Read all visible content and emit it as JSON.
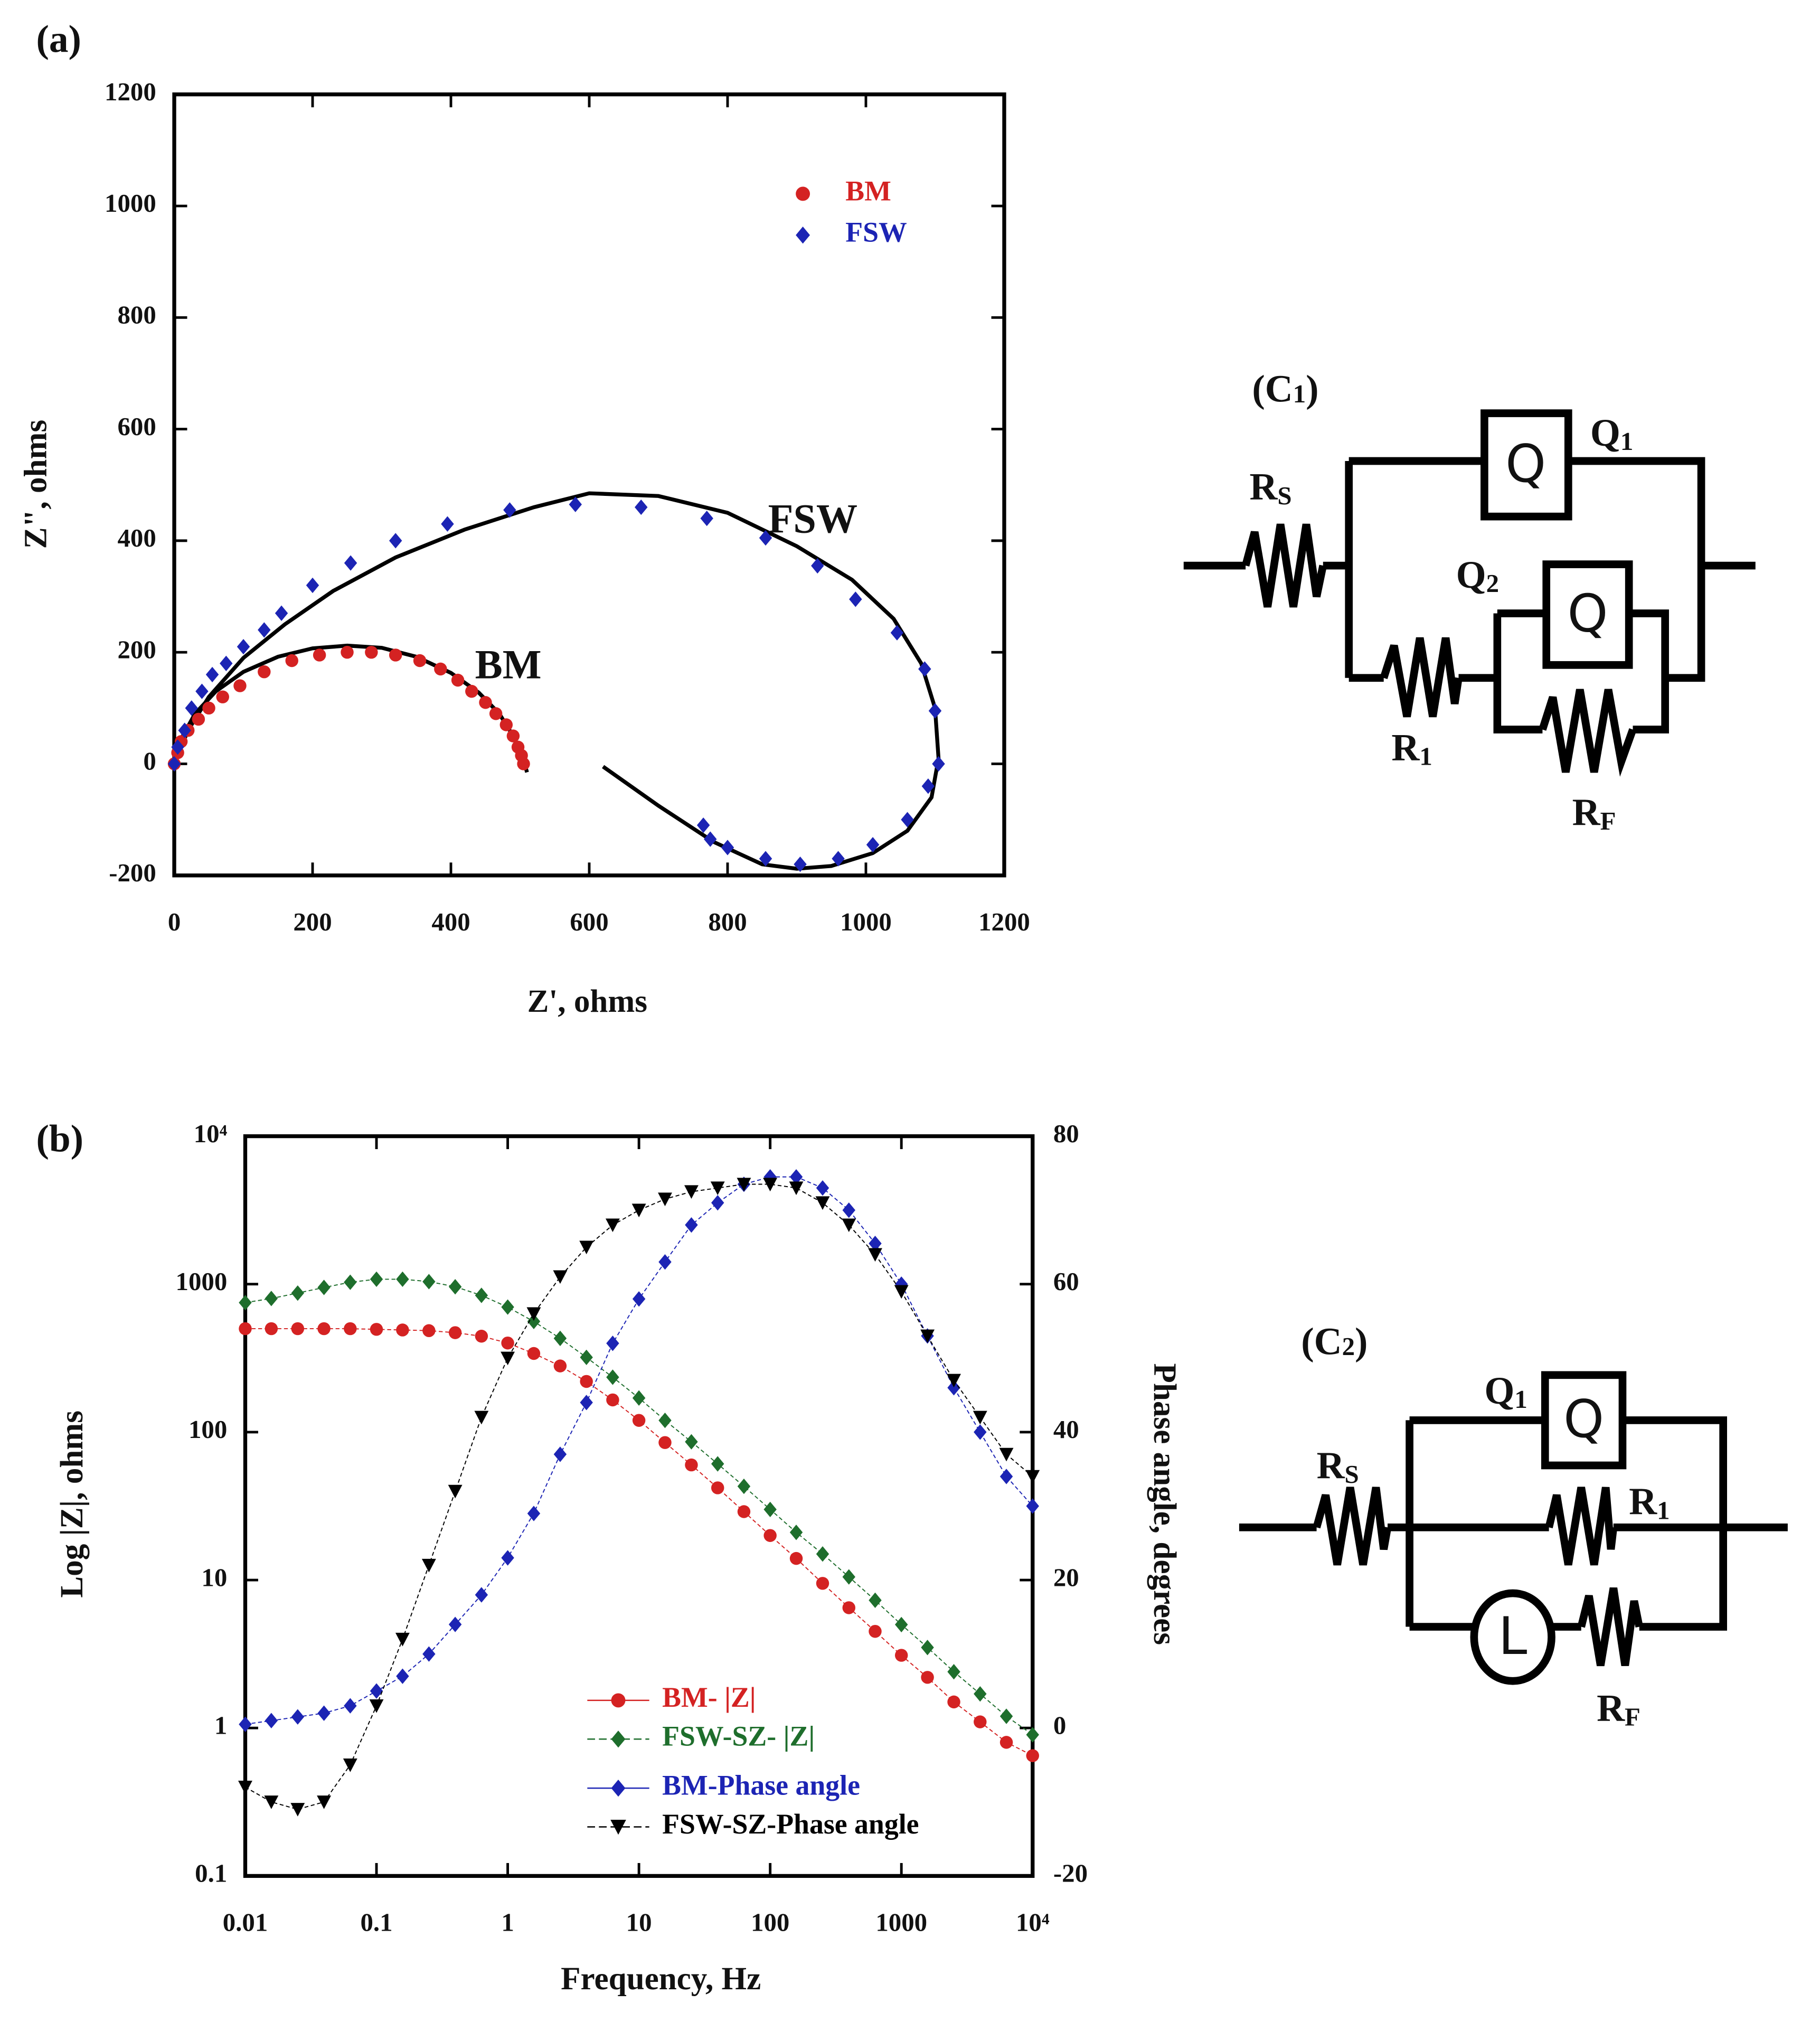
{
  "chart_data": [
    {
      "type": "scatter",
      "panel_label": "(a)",
      "xlabel": "Z', ohms",
      "ylabel": "Z\", ohms",
      "xlim": [
        0,
        1200
      ],
      "xticks": [
        0,
        200,
        400,
        600,
        800,
        1000,
        1200
      ],
      "ylim": [
        -200,
        1200
      ],
      "yticks": [
        -200,
        0,
        200,
        400,
        600,
        800,
        1000,
        1200
      ],
      "legend": "upper right",
      "annotations": [
        "FSW",
        "BM"
      ],
      "series": [
        {
          "name": "BM",
          "color": "#d42222",
          "marker": "circle",
          "x": [
            0,
            5,
            10,
            20,
            35,
            50,
            70,
            95,
            130,
            170,
            210,
            250,
            285,
            320,
            355,
            385,
            410,
            430,
            450,
            465,
            480,
            490,
            497,
            502,
            505
          ],
          "values": [
            0,
            20,
            40,
            60,
            80,
            100,
            120,
            140,
            165,
            185,
            195,
            200,
            200,
            195,
            185,
            170,
            150,
            130,
            110,
            90,
            70,
            50,
            30,
            15,
            0
          ]
        },
        {
          "name": "FSW",
          "color": "#1c24b4",
          "marker": "diamond",
          "x": [
            0,
            5,
            15,
            25,
            40,
            55,
            75,
            100,
            130,
            155,
            200,
            255,
            320,
            395,
            485,
            580,
            675,
            770,
            855,
            930,
            985,
            1045,
            1085,
            1100,
            1105,
            1090,
            1060,
            1010,
            960,
            905,
            855,
            800,
            775,
            765
          ],
          "values": [
            0,
            30,
            60,
            100,
            130,
            160,
            180,
            210,
            240,
            270,
            320,
            360,
            400,
            430,
            455,
            465,
            460,
            440,
            405,
            355,
            295,
            235,
            170,
            95,
            0,
            -40,
            -100,
            -145,
            -170,
            -180,
            -170,
            -150,
            -135,
            -110
          ]
        }
      ],
      "fits": [
        {
          "color": "#000000",
          "x": [
            0,
            10,
            30,
            60,
            100,
            150,
            200,
            250,
            300,
            350,
            400,
            440,
            470,
            490,
            503,
            510
          ],
          "values": [
            0,
            45,
            90,
            130,
            165,
            192,
            207,
            212,
            208,
            192,
            163,
            128,
            90,
            50,
            15,
            -15
          ]
        },
        {
          "color": "#000000",
          "x": [
            0,
            20,
            50,
            100,
            160,
            230,
            320,
            420,
            520,
            600,
            700,
            800,
            900,
            980,
            1040,
            1080,
            1100,
            1105,
            1095,
            1060,
            1010,
            950,
            900,
            850,
            780,
            700,
            620
          ],
          "values": [
            0,
            60,
            120,
            190,
            250,
            310,
            370,
            420,
            460,
            485,
            480,
            450,
            390,
            330,
            260,
            180,
            100,
            10,
            -60,
            -120,
            -160,
            -183,
            -188,
            -180,
            -140,
            -75,
            -5
          ]
        }
      ]
    },
    {
      "type": "line",
      "panel_label": "(b)",
      "xlabel": "Frequency, Hz",
      "ylabel": "Log |Z|, ohms",
      "y2label": "Phase angle, degrees",
      "xscale": "log",
      "yscale": "log",
      "xlim": [
        0.01,
        10000
      ],
      "xticks": [
        0.01,
        0.1,
        1,
        10,
        100,
        1000,
        {
          "value": 10000,
          "label": "10⁴"
        }
      ],
      "ylim": [
        0.1,
        10000
      ],
      "yticks": [
        0.1,
        1,
        10,
        100,
        1000,
        {
          "value": 10000,
          "label": "10⁴"
        }
      ],
      "y2lim": [
        -20,
        80
      ],
      "y2ticks": [
        -20,
        0,
        20,
        40,
        60,
        80
      ],
      "legend": "lower center",
      "x": [
        0.01,
        0.0158,
        0.0251,
        0.0398,
        0.0631,
        0.1,
        0.158,
        0.251,
        0.398,
        0.631,
        1,
        1.58,
        2.51,
        3.98,
        6.31,
        10,
        15.8,
        25.1,
        39.8,
        63.1,
        100,
        158,
        251,
        398,
        631,
        1000,
        1580,
        2510,
        3980,
        6310,
        10000
      ],
      "series": [
        {
          "name": "BM- |Z|",
          "color": "#d42222",
          "marker": "circle",
          "values": [
            500,
            500,
            500,
            500,
            500,
            495,
            490,
            485,
            470,
            445,
            400,
            340,
            280,
            220,
            165,
            120,
            85,
            60,
            42,
            29,
            20,
            14,
            9.5,
            6.5,
            4.5,
            3.1,
            2.2,
            1.5,
            1.1,
            0.8,
            0.65
          ]
        },
        {
          "name": "FSW-SZ-  |Z|",
          "color": "#1e6e2c",
          "marker": "diamond",
          "values": [
            750,
            800,
            870,
            950,
            1030,
            1080,
            1080,
            1040,
            960,
            840,
            700,
            560,
            430,
            320,
            235,
            170,
            120,
            86,
            61,
            43,
            30,
            21,
            15,
            10.5,
            7.3,
            5,
            3.5,
            2.4,
            1.7,
            1.2,
            0.9
          ]
        },
        {
          "name": "BM-Phase angle",
          "color": "#1c24b4",
          "marker": "diamond",
          "axis": "y2",
          "values": [
            0.5,
            1,
            1.5,
            2,
            3,
            5,
            7,
            10,
            14,
            18,
            23,
            29,
            37,
            44,
            52,
            58,
            63,
            68,
            71,
            73.5,
            74.5,
            74.5,
            73,
            70,
            65.5,
            60,
            53,
            46,
            40,
            34,
            30
          ]
        },
        {
          "name": "FSW-SZ-Phase angle",
          "color": "#000000",
          "marker": "triangle-down",
          "axis": "y2",
          "values": [
            -8,
            -10,
            -11,
            -10,
            -5,
            3,
            12,
            22,
            32,
            42,
            50,
            56,
            61,
            65,
            68,
            70,
            71.5,
            72.5,
            73,
            73.5,
            73.5,
            73,
            71,
            68,
            64,
            59,
            53,
            47,
            42,
            37,
            34
          ]
        }
      ]
    }
  ],
  "circuits": [
    {
      "label": {
        "main": "(C",
        "sub": "1",
        "tail": ")"
      },
      "elements": [
        {
          "main": "R",
          "sub": "S"
        },
        {
          "main": "Q",
          "sub": "1"
        },
        {
          "main": "Q",
          "sub": "2"
        },
        {
          "main": "R",
          "sub": "1"
        },
        {
          "main": "R",
          "sub": "F"
        }
      ],
      "symbols": [
        "Q",
        "Q"
      ]
    },
    {
      "label": {
        "main": "(C",
        "sub": "2",
        "tail": ")"
      },
      "elements": [
        {
          "main": "Q",
          "sub": "1"
        },
        {
          "main": "R",
          "sub": "S"
        },
        {
          "main": "R",
          "sub": "1"
        },
        {
          "main": "R",
          "sub": "F"
        }
      ],
      "symbols": [
        "Q",
        "L"
      ]
    }
  ]
}
